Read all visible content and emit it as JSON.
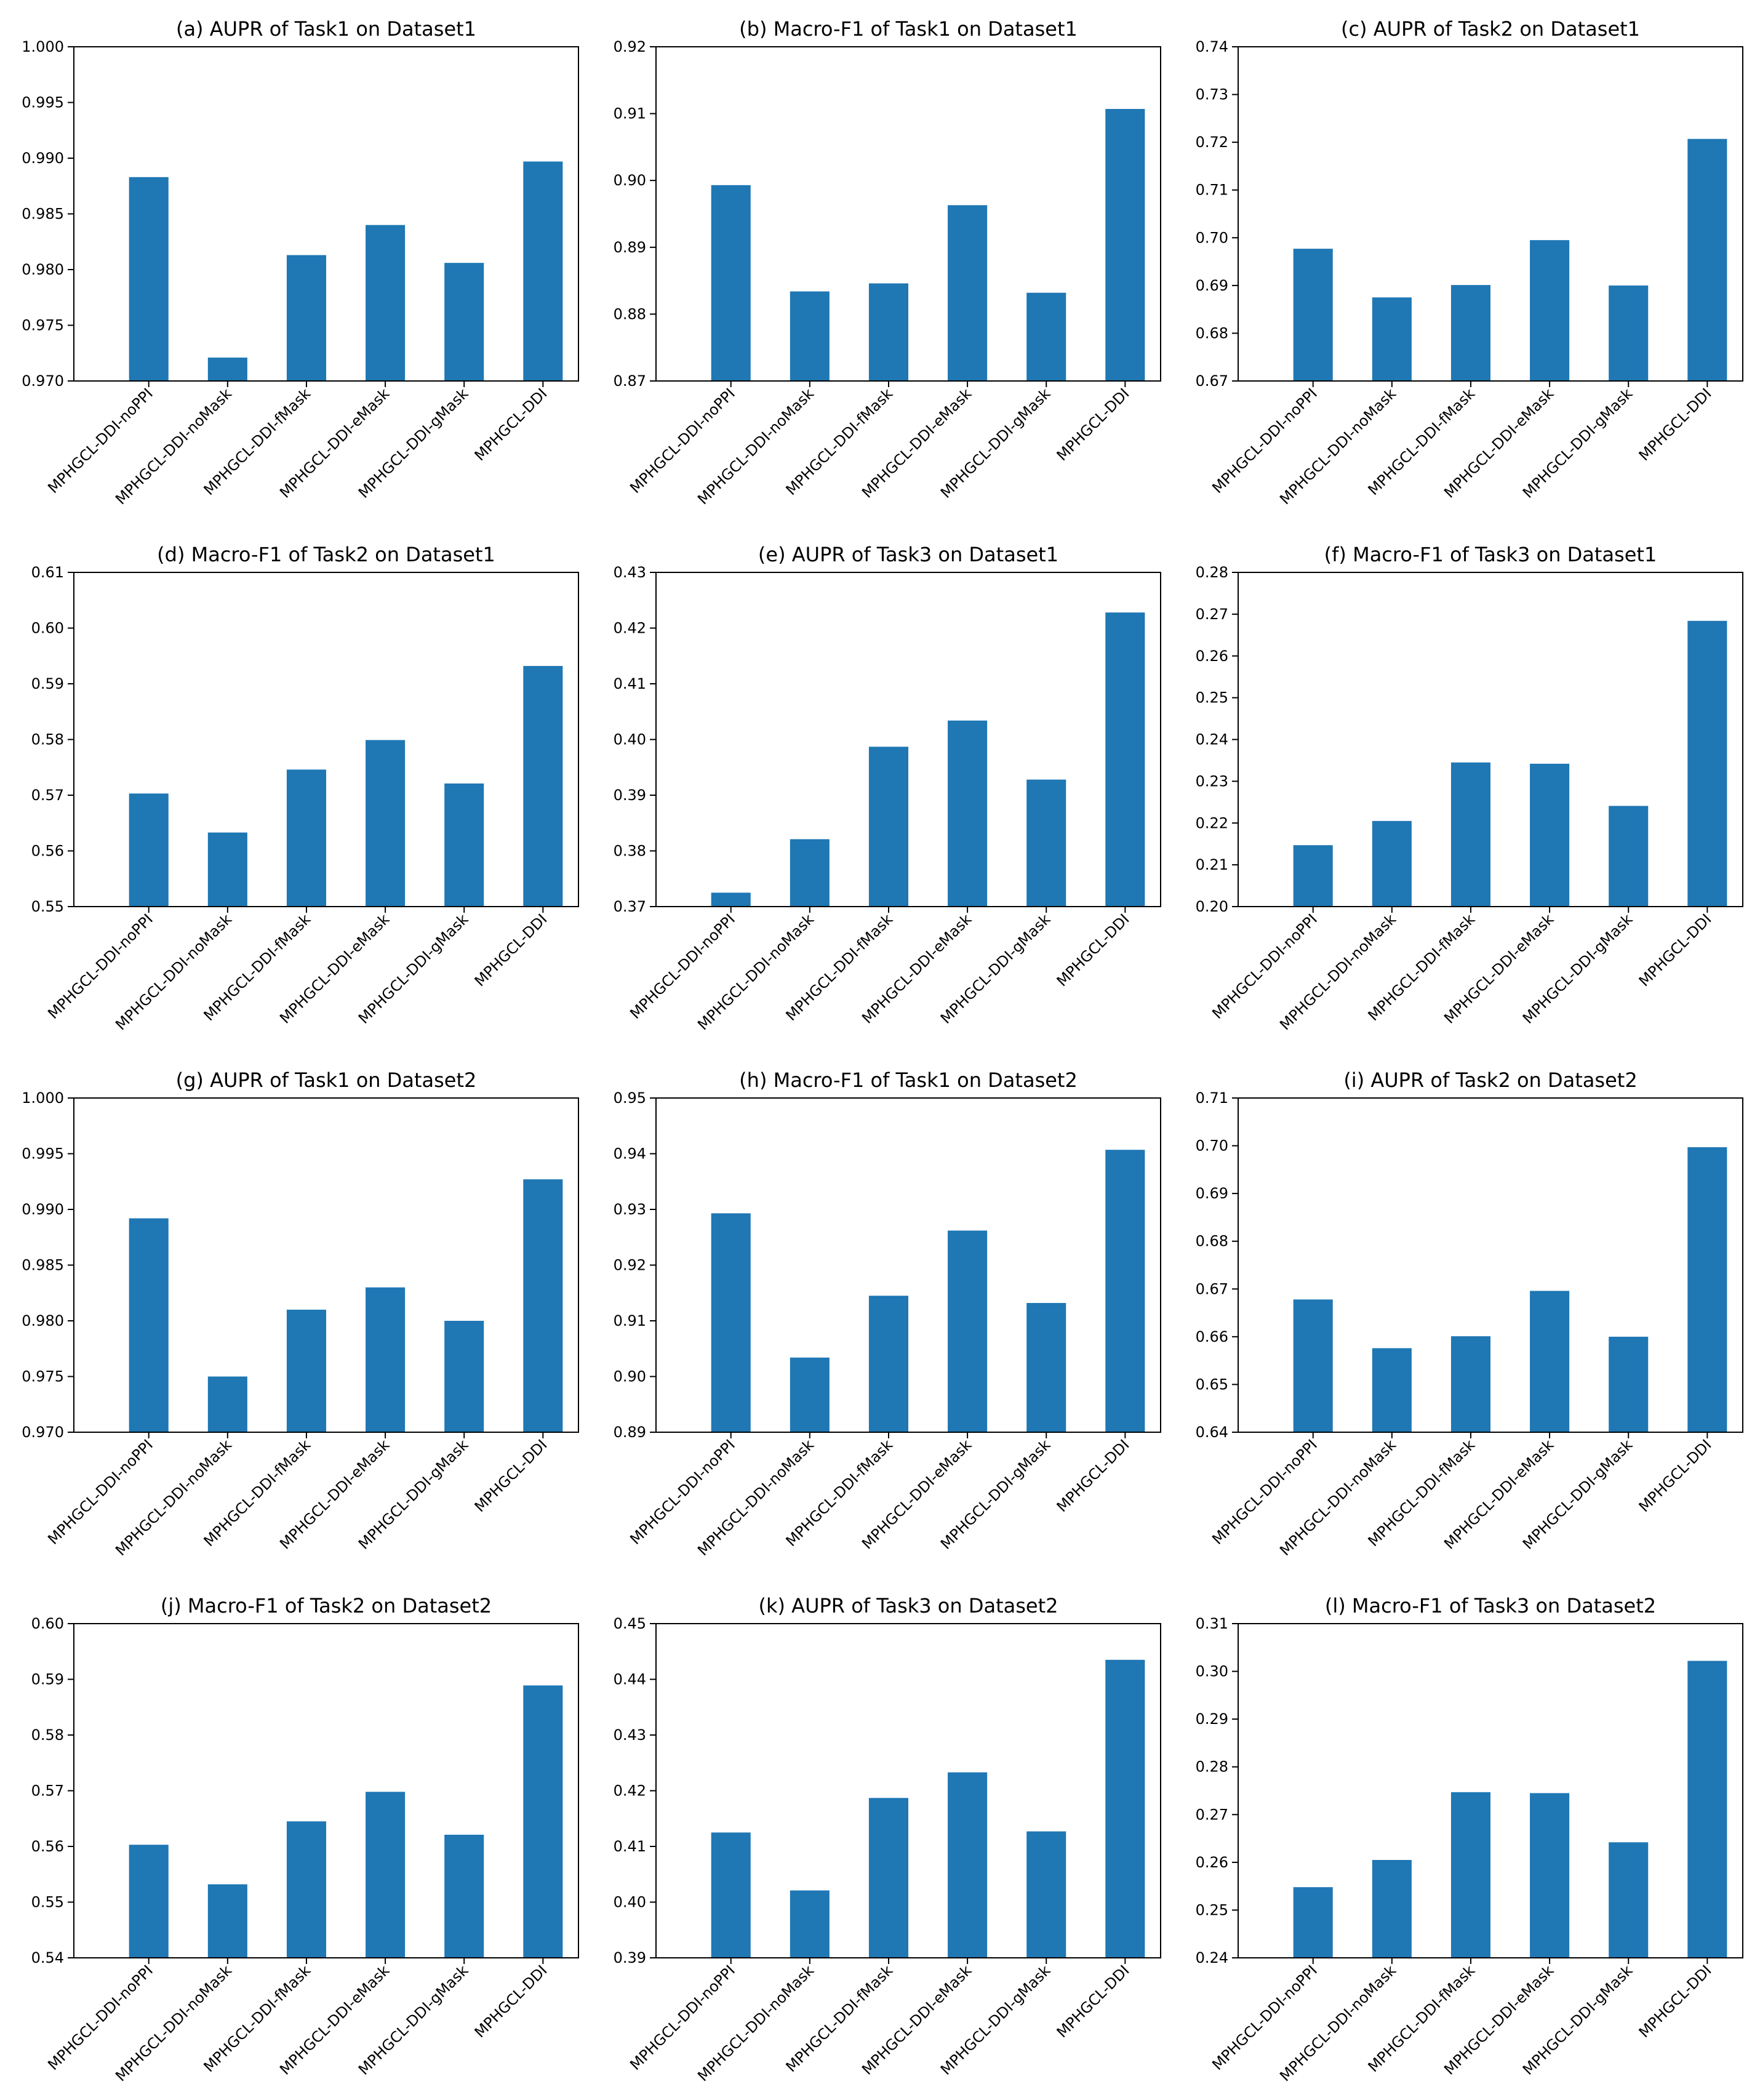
{
  "figure": {
    "bar_color": "#1f77b4",
    "categories": [
      "MPHGCL-DDI-noPPI",
      "MPHGCL-DDI-noMask",
      "MPHGCL-DDI-fMask",
      "MPHGCL-DDI-eMask",
      "MPHGCL-DDI-gMask",
      "MPHGCL-DDI"
    ]
  },
  "chart_data": [
    {
      "type": "bar",
      "title": "(a)  AUPR of Task1 on Dataset1",
      "xlabel": "",
      "ylabel": "",
      "ylim": [
        0.97,
        1.0
      ],
      "yticks": [
        "0.970",
        "0.975",
        "0.980",
        "0.985",
        "0.990",
        "0.995",
        "1.000"
      ],
      "categories": [
        "MPHGCL-DDI-noPPI",
        "MPHGCL-DDI-noMask",
        "MPHGCL-DDI-fMask",
        "MPHGCL-DDI-eMask",
        "MPHGCL-DDI-gMask",
        "MPHGCL-DDI"
      ],
      "values": [
        0.9883,
        0.9721,
        0.9813,
        0.984,
        0.9806,
        0.9897
      ]
    },
    {
      "type": "bar",
      "title": "(b)  Macro-F1 of Task1 on Dataset1",
      "xlabel": "",
      "ylabel": "",
      "ylim": [
        0.87,
        0.92
      ],
      "yticks": [
        "0.87",
        "0.88",
        "0.89",
        "0.90",
        "0.91",
        "0.92"
      ],
      "categories": [
        "MPHGCL-DDI-noPPI",
        "MPHGCL-DDI-noMask",
        "MPHGCL-DDI-fMask",
        "MPHGCL-DDI-eMask",
        "MPHGCL-DDI-gMask",
        "MPHGCL-DDI"
      ],
      "values": [
        0.8993,
        0.8834,
        0.8846,
        0.8963,
        0.8832,
        0.9107
      ]
    },
    {
      "type": "bar",
      "title": "(c)  AUPR of Task2 on Dataset1",
      "xlabel": "",
      "ylabel": "",
      "ylim": [
        0.67,
        0.74
      ],
      "yticks": [
        "0.67",
        "0.68",
        "0.69",
        "0.70",
        "0.71",
        "0.72",
        "0.73",
        "0.74"
      ],
      "categories": [
        "MPHGCL-DDI-noPPI",
        "MPHGCL-DDI-noMask",
        "MPHGCL-DDI-fMask",
        "MPHGCL-DDI-eMask",
        "MPHGCL-DDI-gMask",
        "MPHGCL-DDI"
      ],
      "values": [
        0.6977,
        0.6875,
        0.6901,
        0.6995,
        0.69,
        0.7207
      ]
    },
    {
      "type": "bar",
      "title": "(d)  Macro-F1 of Task2 on Dataset1",
      "xlabel": "",
      "ylabel": "",
      "ylim": [
        0.55,
        0.61
      ],
      "yticks": [
        "0.55",
        "0.56",
        "0.57",
        "0.58",
        "0.59",
        "0.60",
        "0.61"
      ],
      "categories": [
        "MPHGCL-DDI-noPPI",
        "MPHGCL-DDI-noMask",
        "MPHGCL-DDI-fMask",
        "MPHGCL-DDI-eMask",
        "MPHGCL-DDI-gMask",
        "MPHGCL-DDI"
      ],
      "values": [
        0.5703,
        0.5633,
        0.5746,
        0.5799,
        0.5721,
        0.5932
      ]
    },
    {
      "type": "bar",
      "title": "(e)  AUPR of Task3 on Dataset1",
      "xlabel": "",
      "ylabel": "",
      "ylim": [
        0.37,
        0.43
      ],
      "yticks": [
        "0.37",
        "0.38",
        "0.39",
        "0.40",
        "0.41",
        "0.42",
        "0.43"
      ],
      "categories": [
        "MPHGCL-DDI-noPPI",
        "MPHGCL-DDI-noMask",
        "MPHGCL-DDI-fMask",
        "MPHGCL-DDI-eMask",
        "MPHGCL-DDI-gMask",
        "MPHGCL-DDI"
      ],
      "values": [
        0.3725,
        0.3821,
        0.3987,
        0.4034,
        0.3928,
        0.4228
      ]
    },
    {
      "type": "bar",
      "title": "(f)  Macro-F1 of Task3 on Dataset1",
      "xlabel": "",
      "ylabel": "",
      "ylim": [
        0.2,
        0.28
      ],
      "yticks": [
        "0.20",
        "0.21",
        "0.22",
        "0.23",
        "0.24",
        "0.25",
        "0.26",
        "0.27",
        "0.28"
      ],
      "categories": [
        "MPHGCL-DDI-noPPI",
        "MPHGCL-DDI-noMask",
        "MPHGCL-DDI-fMask",
        "MPHGCL-DDI-eMask",
        "MPHGCL-DDI-gMask",
        "MPHGCL-DDI"
      ],
      "values": [
        0.2147,
        0.2205,
        0.2345,
        0.2342,
        0.2241,
        0.2684
      ]
    },
    {
      "type": "bar",
      "title": "(g)  AUPR of Task1 on Dataset2",
      "xlabel": "",
      "ylabel": "",
      "ylim": [
        0.97,
        1.0
      ],
      "yticks": [
        "0.970",
        "0.975",
        "0.980",
        "0.985",
        "0.990",
        "0.995",
        "1.000"
      ],
      "categories": [
        "MPHGCL-DDI-noPPI",
        "MPHGCL-DDI-noMask",
        "MPHGCL-DDI-fMask",
        "MPHGCL-DDI-eMask",
        "MPHGCL-DDI-gMask",
        "MPHGCL-DDI"
      ],
      "values": [
        0.9892,
        0.975,
        0.981,
        0.983,
        0.98,
        0.9927
      ]
    },
    {
      "type": "bar",
      "title": "(h)  Macro-F1 of Task1 on Dataset2",
      "xlabel": "",
      "ylabel": "",
      "ylim": [
        0.89,
        0.95
      ],
      "yticks": [
        "0.89",
        "0.90",
        "0.91",
        "0.92",
        "0.93",
        "0.94",
        "0.95"
      ],
      "categories": [
        "MPHGCL-DDI-noPPI",
        "MPHGCL-DDI-noMask",
        "MPHGCL-DDI-fMask",
        "MPHGCL-DDI-eMask",
        "MPHGCL-DDI-gMask",
        "MPHGCL-DDI"
      ],
      "values": [
        0.9293,
        0.9034,
        0.9145,
        0.9262,
        0.9132,
        0.9407
      ]
    },
    {
      "type": "bar",
      "title": "(i)  AUPR of Task2 on Dataset2",
      "xlabel": "",
      "ylabel": "",
      "ylim": [
        0.64,
        0.71
      ],
      "yticks": [
        "0.64",
        "0.65",
        "0.66",
        "0.67",
        "0.68",
        "0.69",
        "0.70",
        "0.71"
      ],
      "categories": [
        "MPHGCL-DDI-noPPI",
        "MPHGCL-DDI-noMask",
        "MPHGCL-DDI-fMask",
        "MPHGCL-DDI-eMask",
        "MPHGCL-DDI-gMask",
        "MPHGCL-DDI"
      ],
      "values": [
        0.6678,
        0.6576,
        0.6601,
        0.6696,
        0.66,
        0.6997
      ]
    },
    {
      "type": "bar",
      "title": "(j)  Macro-F1 of Task2 on Dataset2",
      "xlabel": "",
      "ylabel": "",
      "ylim": [
        0.54,
        0.6
      ],
      "yticks": [
        "0.54",
        "0.55",
        "0.56",
        "0.57",
        "0.58",
        "0.59",
        "0.60"
      ],
      "categories": [
        "MPHGCL-DDI-noPPI",
        "MPHGCL-DDI-noMask",
        "MPHGCL-DDI-fMask",
        "MPHGCL-DDI-eMask",
        "MPHGCL-DDI-gMask",
        "MPHGCL-DDI"
      ],
      "values": [
        0.5603,
        0.5532,
        0.5645,
        0.5698,
        0.5621,
        0.5889
      ]
    },
    {
      "type": "bar",
      "title": "(k)  AUPR of Task3 on Dataset2",
      "xlabel": "",
      "ylabel": "",
      "ylim": [
        0.39,
        0.45
      ],
      "yticks": [
        "0.39",
        "0.40",
        "0.41",
        "0.42",
        "0.43",
        "0.44",
        "0.45"
      ],
      "categories": [
        "MPHGCL-DDI-noPPI",
        "MPHGCL-DDI-noMask",
        "MPHGCL-DDI-fMask",
        "MPHGCL-DDI-eMask",
        "MPHGCL-DDI-gMask",
        "MPHGCL-DDI"
      ],
      "values": [
        0.4125,
        0.4021,
        0.4187,
        0.4233,
        0.4127,
        0.4435
      ]
    },
    {
      "type": "bar",
      "title": "(l)  Macro-F1 of Task3 on Dataset2",
      "xlabel": "",
      "ylabel": "",
      "ylim": [
        0.24,
        0.31
      ],
      "yticks": [
        "0.24",
        "0.25",
        "0.26",
        "0.27",
        "0.28",
        "0.29",
        "0.30",
        "0.31"
      ],
      "categories": [
        "MPHGCL-DDI-noPPI",
        "MPHGCL-DDI-noMask",
        "MPHGCL-DDI-fMask",
        "MPHGCL-DDI-eMask",
        "MPHGCL-DDI-gMask",
        "MPHGCL-DDI"
      ],
      "values": [
        0.2548,
        0.2605,
        0.2747,
        0.2745,
        0.2642,
        0.3022
      ]
    }
  ]
}
